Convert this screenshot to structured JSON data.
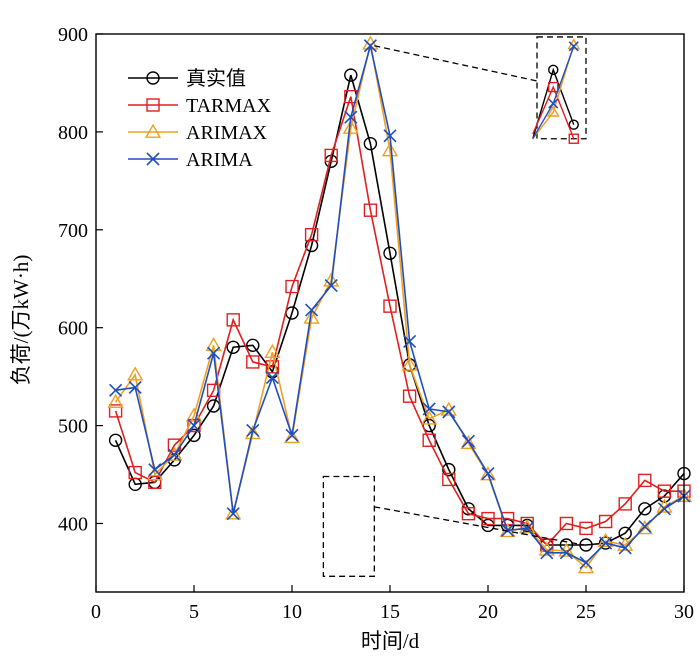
{
  "chart_data": {
    "type": "line",
    "xlabel": "时间/d",
    "ylabel": "负荷/(万kW·h)",
    "xlim": [
      0,
      30
    ],
    "ylim": [
      330,
      900
    ],
    "xticks": [
      0,
      5,
      10,
      15,
      20,
      25,
      30
    ],
    "yticks": [
      400,
      500,
      600,
      700,
      800,
      900
    ],
    "grid": false,
    "legend_position": "top-left",
    "x": [
      1,
      2,
      3,
      4,
      5,
      6,
      7,
      8,
      9,
      10,
      11,
      12,
      13,
      14,
      15,
      16,
      17,
      18,
      19,
      20,
      21,
      22,
      23,
      24,
      25,
      26,
      27,
      28,
      29,
      30
    ],
    "series": [
      {
        "name": "真实值",
        "color": "#000000",
        "marker": "circle",
        "values": [
          485,
          440,
          442,
          465,
          490,
          520,
          580,
          582,
          555,
          615,
          684,
          770,
          858,
          788,
          676,
          562,
          500,
          455,
          415,
          398,
          398,
          398,
          378,
          378,
          378,
          380,
          390,
          415,
          428,
          451
        ]
      },
      {
        "name": "TARMAX",
        "color": "#e02020",
        "marker": "square",
        "values": [
          515,
          452,
          442,
          480,
          500,
          536,
          608,
          565,
          560,
          642,
          695,
          776,
          836,
          720,
          622,
          530,
          485,
          445,
          410,
          405,
          405,
          400,
          378,
          400,
          395,
          402,
          420,
          444,
          433,
          433
        ]
      },
      {
        "name": "ARIMAX",
        "color": "#f0a020",
        "marker": "triangle",
        "values": [
          524,
          552,
          450,
          470,
          510,
          582,
          410,
          492,
          575,
          488,
          610,
          648,
          804,
          890,
          781,
          562,
          507,
          516,
          482,
          450,
          392,
          396,
          373,
          372,
          355,
          382,
          378,
          395,
          417,
          428
        ]
      },
      {
        "name": "ARIMA",
        "color": "#1f4fbf",
        "marker": "x",
        "values": [
          536,
          539,
          455,
          470,
          500,
          574,
          410,
          495,
          549,
          490,
          618,
          643,
          815,
          888,
          796,
          586,
          517,
          514,
          484,
          451,
          393,
          395,
          370,
          370,
          360,
          380,
          375,
          397,
          415,
          428
        ]
      }
    ],
    "zoom_boxes": [
      {
        "xrange": [
          11.6,
          14.2
        ],
        "yrange": [
          346,
          448
        ],
        "connects_to": "x≈25 low-load region"
      },
      {
        "xrange": [
          22.5,
          25
        ],
        "yrange": [
          793,
          897
        ],
        "connects_to": "x≈13–14 peak region"
      }
    ]
  }
}
